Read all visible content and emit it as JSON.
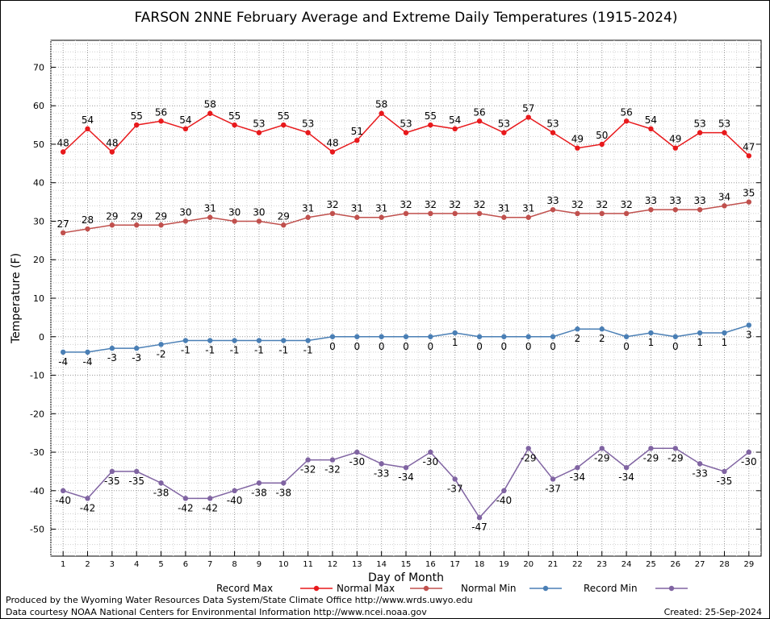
{
  "chart_data": {
    "type": "line",
    "title": "FARSON 2NNE February Average and Extreme Daily Temperatures (1915-2024)",
    "xlabel": "Day of Month",
    "ylabel": "Temperature (F)",
    "ylim": [
      -57,
      77
    ],
    "y_ticks": [
      -50,
      -40,
      -30,
      -20,
      -10,
      0,
      10,
      20,
      30,
      40,
      50,
      60,
      70
    ],
    "grid": true,
    "legend_position": "bottom",
    "x": [
      1,
      2,
      3,
      4,
      5,
      6,
      7,
      8,
      9,
      10,
      11,
      12,
      13,
      14,
      15,
      16,
      17,
      18,
      19,
      20,
      21,
      22,
      23,
      24,
      25,
      26,
      27,
      28,
      29
    ],
    "series": [
      {
        "name": "Record Max",
        "color": "#e8191c",
        "label_pos": "above",
        "values": [
          48,
          54,
          48,
          55,
          56,
          54,
          58,
          55,
          53,
          55,
          53,
          48,
          51,
          58,
          53,
          55,
          54,
          56,
          53,
          57,
          53,
          49,
          50,
          56,
          54,
          49,
          53,
          53,
          47
        ]
      },
      {
        "name": "Normal Max",
        "color": "#c0504d",
        "label_pos": "above",
        "values": [
          27,
          28,
          29,
          29,
          29,
          30,
          31,
          30,
          30,
          29,
          31,
          32,
          31,
          31,
          32,
          32,
          32,
          32,
          31,
          31,
          33,
          32,
          32,
          32,
          33,
          33,
          33,
          34,
          35
        ]
      },
      {
        "name": "Normal Min",
        "color": "#4a7fb5",
        "label_pos": "below",
        "values": [
          -4,
          -4,
          -3,
          -3,
          -2,
          -1,
          -1,
          -1,
          -1,
          -1,
          -1,
          0,
          0,
          0,
          0,
          0,
          1,
          0,
          0,
          0,
          0,
          2,
          2,
          0,
          1,
          0,
          1,
          1,
          3
        ]
      },
      {
        "name": "Record Min",
        "color": "#8064a2",
        "label_pos": "below",
        "values": [
          -40,
          -42,
          -35,
          -35,
          -38,
          -42,
          -42,
          -40,
          -38,
          -38,
          -32,
          -32,
          -30,
          -33,
          -34,
          -30,
          -37,
          -47,
          -40,
          -29,
          -37,
          -34,
          -29,
          -34,
          -29,
          -29,
          -33,
          -35,
          -30
        ]
      }
    ]
  },
  "footer": {
    "produced_by": "Produced by the Wyoming Water Resources Data System/State Climate Office http://www.wrds.uwyo.edu",
    "data_courtesy": "Data courtesy NOAA National Centers for Environmental Information http://www.ncei.noaa.gov",
    "created": "Created:  25-Sep-2024"
  }
}
